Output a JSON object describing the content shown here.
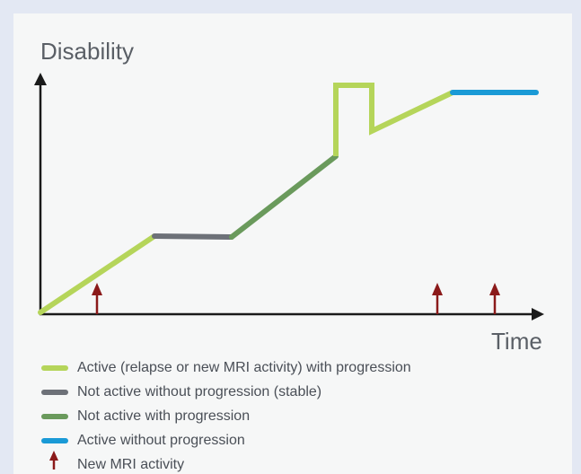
{
  "axes": {
    "y_label": "Disability",
    "x_label": "Time"
  },
  "legend": [
    {
      "label": "Active (relapse or new MRI activity) with progression"
    },
    {
      "label": "Not active without progression (stable)"
    },
    {
      "label": "Not active with progression"
    },
    {
      "label": "Active without progression"
    },
    {
      "label": "New MRI activity"
    }
  ]
}
